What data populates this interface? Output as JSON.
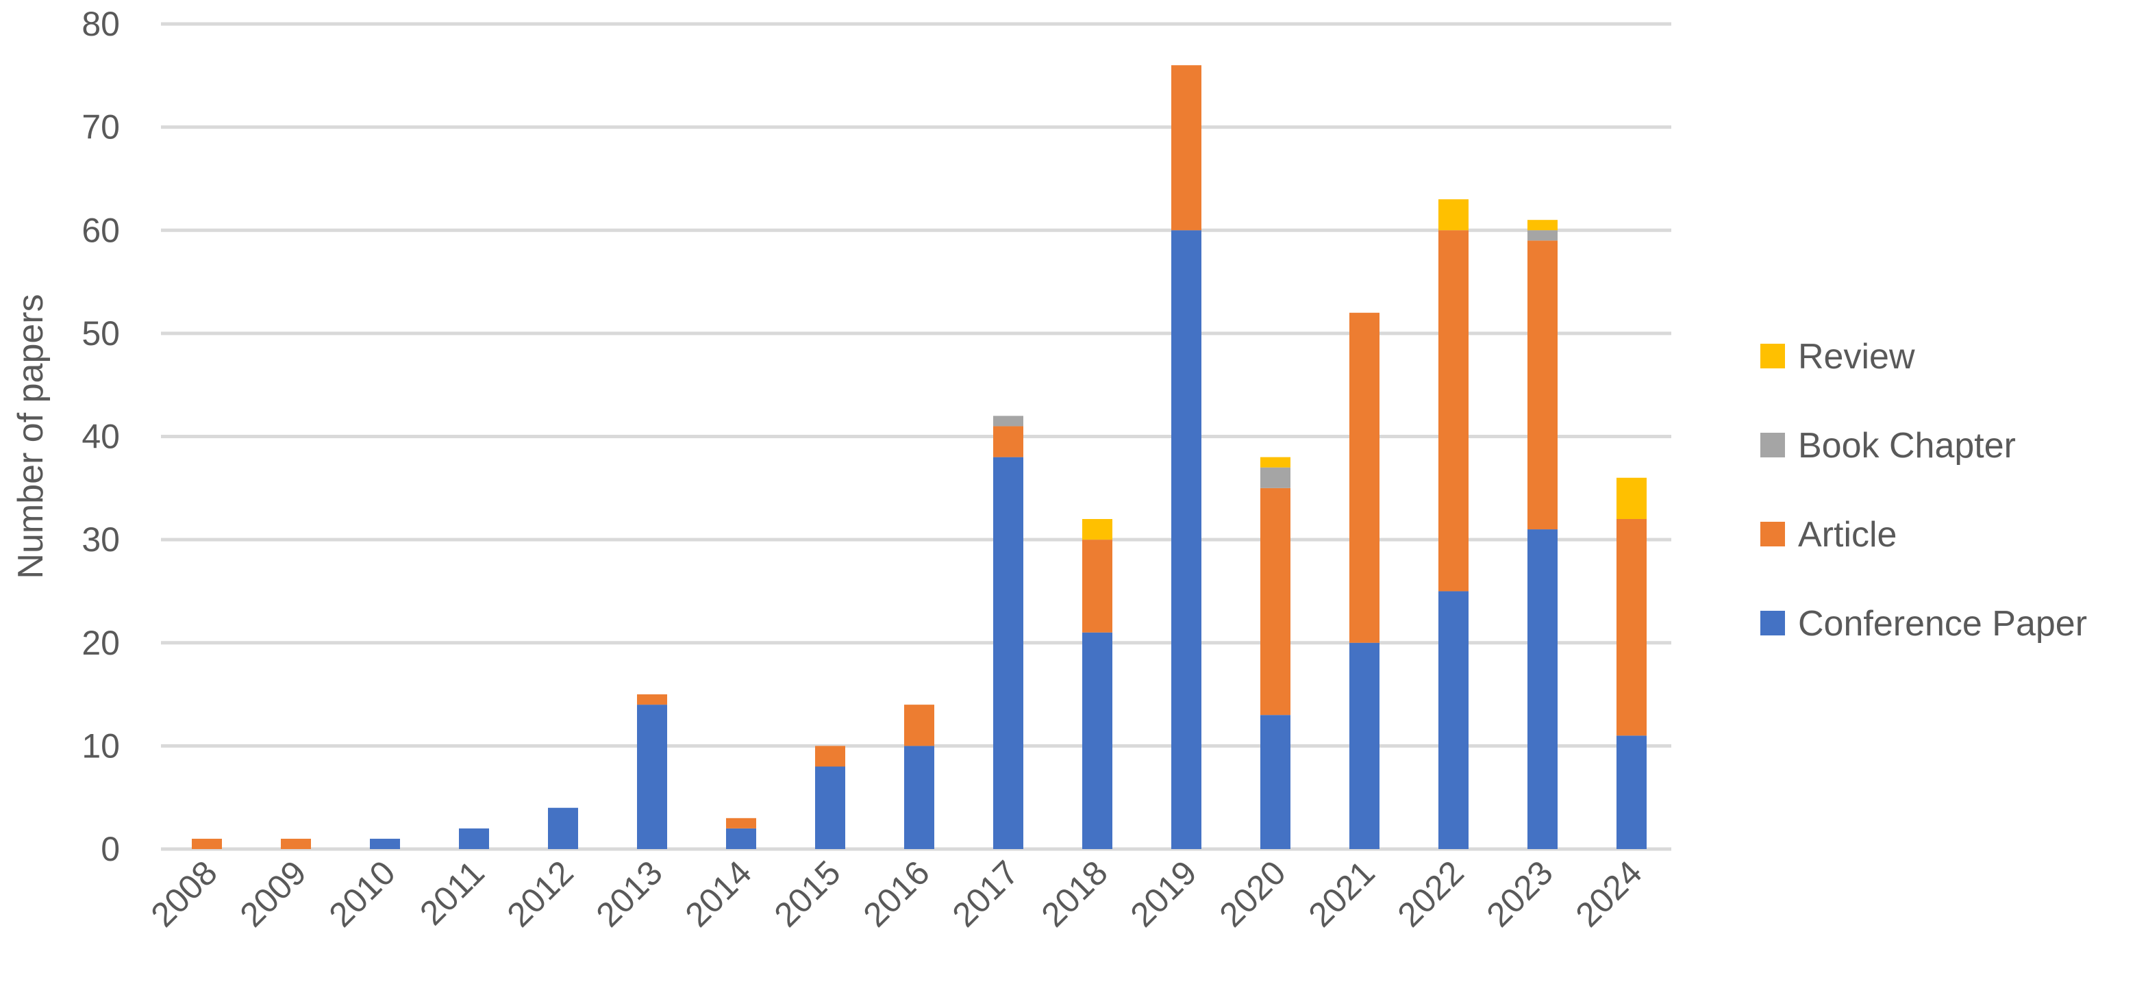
{
  "chart_data": {
    "type": "bar",
    "stacked": true,
    "title": "",
    "xlabel": "",
    "ylabel": "Number of papers",
    "ylim": [
      0,
      80
    ],
    "yticks": [
      0,
      10,
      20,
      30,
      40,
      50,
      60,
      70,
      80
    ],
    "grid": true,
    "legend_position": "right",
    "categories": [
      "2008",
      "2009",
      "2010",
      "2011",
      "2012",
      "2013",
      "2014",
      "2015",
      "2016",
      "2017",
      "2018",
      "2019",
      "2020",
      "2021",
      "2022",
      "2023",
      "2024"
    ],
    "series": [
      {
        "name": "Conference Paper",
        "color": "#4472C4",
        "values": [
          0,
          0,
          1,
          2,
          4,
          14,
          2,
          8,
          10,
          38,
          21,
          60,
          13,
          20,
          25,
          31,
          11
        ]
      },
      {
        "name": "Article",
        "color": "#ED7D31",
        "values": [
          1,
          1,
          0,
          0,
          0,
          1,
          1,
          2,
          4,
          3,
          9,
          16,
          22,
          32,
          35,
          28,
          21
        ]
      },
      {
        "name": "Book Chapter",
        "color": "#A5A5A5",
        "values": [
          0,
          0,
          0,
          0,
          0,
          0,
          0,
          0,
          0,
          1,
          0,
          0,
          2,
          0,
          0,
          1,
          0
        ]
      },
      {
        "name": "Review",
        "color": "#FFC000",
        "values": [
          0,
          0,
          0,
          0,
          0,
          0,
          0,
          0,
          0,
          0,
          2,
          0,
          1,
          0,
          3,
          1,
          4
        ]
      }
    ],
    "legend_order": [
      "Review",
      "Book Chapter",
      "Article",
      "Conference Paper"
    ]
  }
}
